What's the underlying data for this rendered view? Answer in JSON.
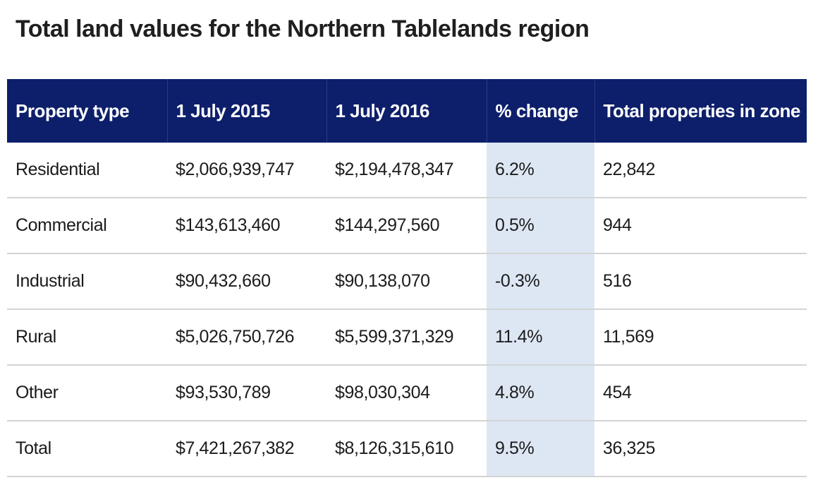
{
  "title": "Total land values for the Northern Tablelands region",
  "table": {
    "headers": [
      "Property type",
      "1 July 2015",
      "1 July 2016",
      "% change",
      "Total properties in zone"
    ],
    "rows": [
      {
        "type": "Residential",
        "v2015": "$2,066,939,747",
        "v2016": "$2,194,478,347",
        "change": "6.2%",
        "properties": "22,842"
      },
      {
        "type": "Commercial",
        "v2015": "$143,613,460",
        "v2016": "$144,297,560",
        "change": "0.5%",
        "properties": "944"
      },
      {
        "type": "Industrial",
        "v2015": "$90,432,660",
        "v2016": "$90,138,070",
        "change": "-0.3%",
        "properties": "516"
      },
      {
        "type": "Rural",
        "v2015": "$5,026,750,726",
        "v2016": "$5,599,371,329",
        "change": "11.4%",
        "properties": "11,569"
      },
      {
        "type": "Other",
        "v2015": "$93,530,789",
        "v2016": "$98,030,304",
        "change": "4.8%",
        "properties": "454"
      },
      {
        "type": "Total",
        "v2015": "$7,421,267,382",
        "v2016": "$8,126,315,610",
        "change": "9.5%",
        "properties": "36,325"
      }
    ]
  },
  "colors": {
    "header_bg": "#0d1f6b",
    "header_text": "#ffffff",
    "change_column_bg": "#dde7f4",
    "row_divider": "#d4d4d4"
  }
}
